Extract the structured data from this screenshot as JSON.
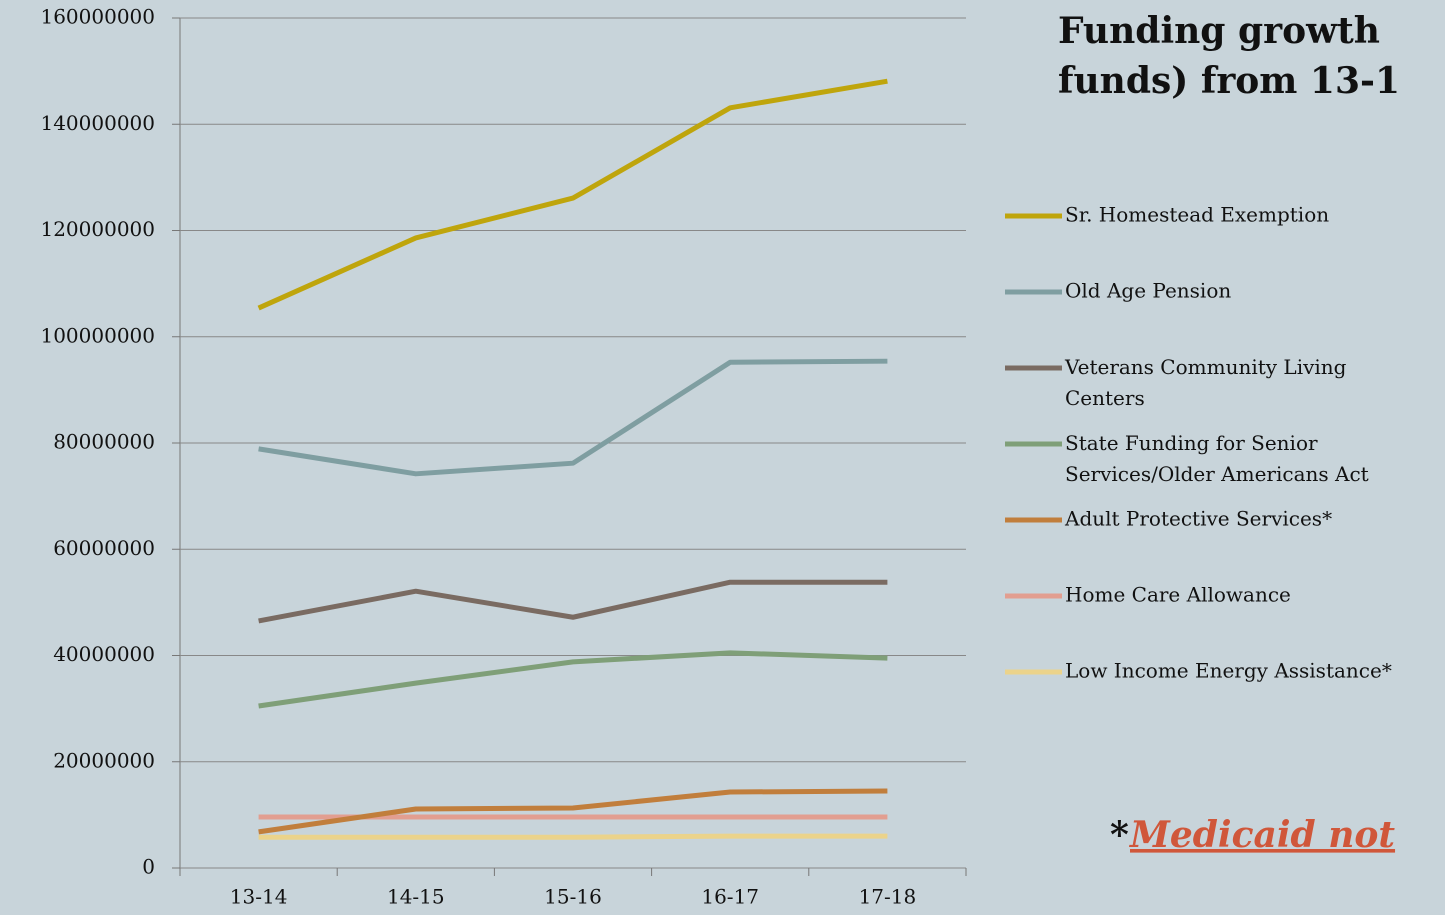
{
  "chart_data": {
    "type": "line",
    "title": [
      "Funding growth",
      "funds) from 13-1"
    ],
    "categories": [
      "13-14",
      "14-15",
      "15-16",
      "16-17",
      "17-18"
    ],
    "series": [
      {
        "name": "Sr. Homestead Exemption",
        "color": "#bfa50c",
        "values": [
          105400000,
          118600000,
          126100000,
          143100000,
          148100000
        ]
      },
      {
        "name": "Old Age Pension",
        "color": "#7f9ea1",
        "values": [
          78900000,
          74200000,
          76200000,
          95200000,
          95400000
        ]
      },
      {
        "name": "Veterans Community Living Centers",
        "color": "#7a6b62",
        "values": [
          46500000,
          52100000,
          47200000,
          53800000,
          53800000
        ]
      },
      {
        "name": "State Funding for Senior Services/Older Americans Act",
        "color": "#7f9f78",
        "values": [
          30500000,
          34800000,
          38800000,
          40500000,
          39500000
        ]
      },
      {
        "name": "Adult Protective Services*",
        "color": "#c17e3c",
        "values": [
          6800000,
          11100000,
          11300000,
          14300000,
          14500000
        ]
      },
      {
        "name": "Home Care Allowance",
        "color": "#e29e90",
        "values": [
          9600000,
          9600000,
          9600000,
          9600000,
          9600000
        ]
      },
      {
        "name": "Low Income Energy Assistance*",
        "color": "#ebd38b",
        "values": [
          5800000,
          5800000,
          5800000,
          6000000,
          6000000
        ]
      }
    ],
    "ylim": [
      0,
      160000000
    ],
    "yticks": [
      0,
      20000000,
      40000000,
      60000000,
      80000000,
      100000000,
      120000000,
      140000000,
      160000000
    ],
    "grid": true,
    "legend": "right",
    "footnote_mark": "*",
    "footnote": "Medicaid not"
  }
}
